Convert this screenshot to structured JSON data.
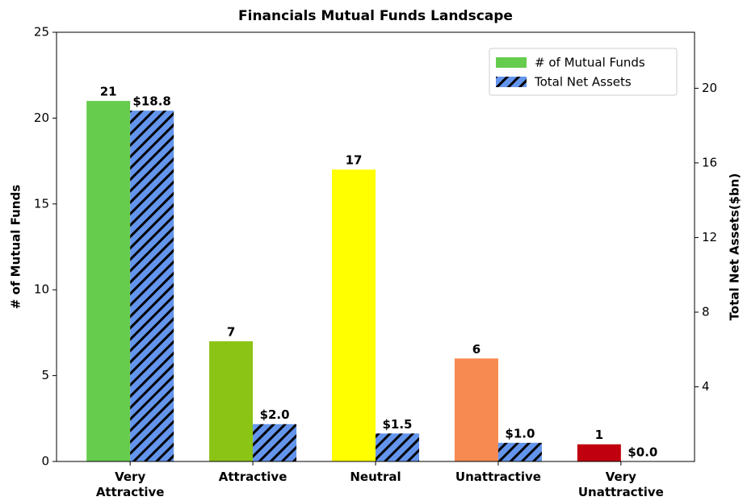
{
  "chart_data": {
    "type": "bar",
    "title": "Financials Mutual Funds Landscape",
    "categories": [
      "Very\nAttractive",
      "Attractive",
      "Neutral",
      "Unattractive",
      "Very\nUnattractive"
    ],
    "ylabel": "# of Mutual Funds",
    "y2label": "Total Net Assets($bn)",
    "ylim": [
      0,
      25
    ],
    "yticks": [
      0,
      5,
      10,
      15,
      20,
      25
    ],
    "y2lim": [
      0,
      23
    ],
    "y2ticks": [
      4,
      8,
      12,
      16,
      20
    ],
    "legend": "upper right",
    "series": [
      {
        "name": "# of Mutual Funds",
        "color": "#66cc4d",
        "colors": [
          "#66cc4d",
          "#8cc416",
          "#ffff00",
          "#f78a50",
          "#c0000e"
        ],
        "values": [
          21,
          7,
          17,
          6,
          1
        ]
      },
      {
        "name": "Total Net Assets",
        "color": "#6495ed",
        "hatch": "//",
        "axis": "y2",
        "values": [
          18.8,
          2.0,
          1.5,
          1.0,
          0.0
        ],
        "value_labels": [
          "$18.8",
          "$2.0",
          "$1.5",
          "$1.0",
          "$0.0"
        ]
      }
    ]
  }
}
